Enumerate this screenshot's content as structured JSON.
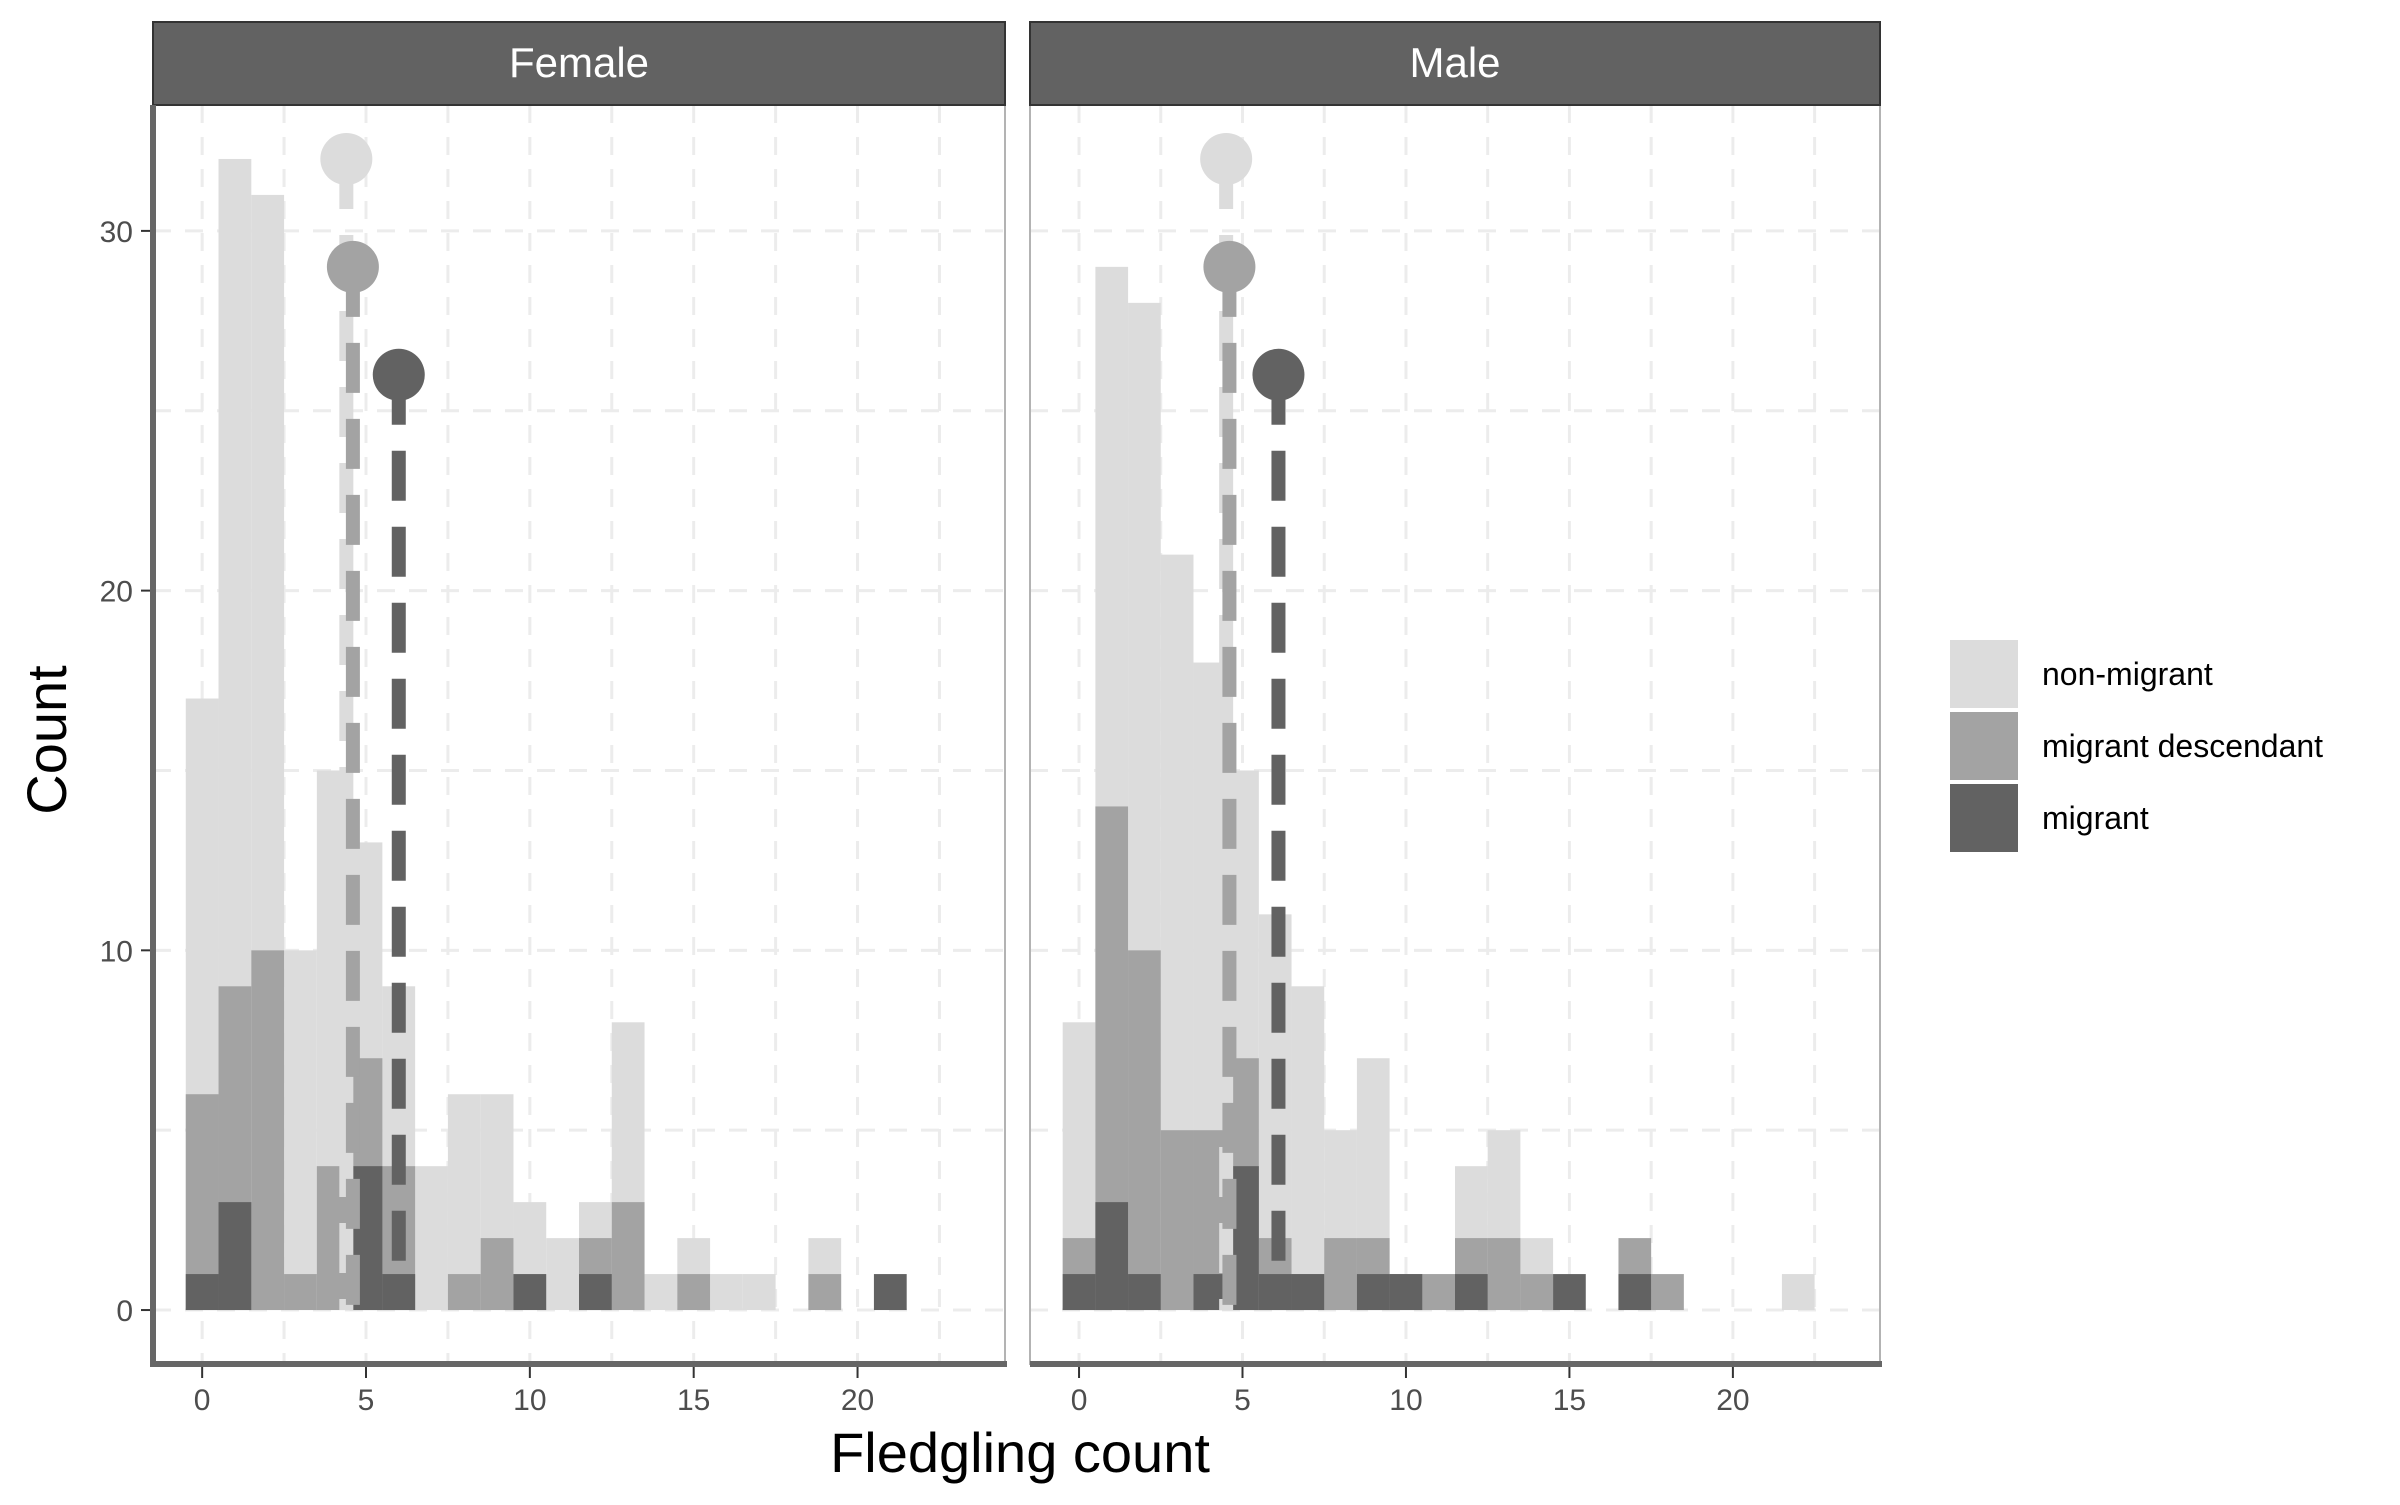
{
  "chart_data": {
    "type": "bar",
    "subtype": "faceted-overlaid-histogram",
    "xlabel": "Fledgling count",
    "ylabel": "Count",
    "xlim": [
      -1.5,
      24.5
    ],
    "ylim": [
      -1.5,
      33.5
    ],
    "x_ticks": [
      0,
      5,
      10,
      15,
      20
    ],
    "y_ticks": [
      0,
      10,
      20,
      30
    ],
    "grid": "dashed-major-and-minor",
    "legend_position": "right",
    "colors": {
      "non-migrant": "#dcdcdc",
      "migrant descendant": "#a3a3a3",
      "migrant": "#626262",
      "strip": "#626262",
      "grid": "#ececec",
      "panel_border": "#b3b3b3"
    },
    "legend": [
      {
        "key": "non-migrant",
        "label": "non-migrant"
      },
      {
        "key": "migrant descendant",
        "label": "migrant descendant"
      },
      {
        "key": "migrant",
        "label": "migrant"
      }
    ],
    "bin_width": 1,
    "panels": [
      {
        "strip": "Female",
        "series": [
          {
            "name": "non-migrant",
            "counts": [
              17,
              32,
              31,
              10,
              15,
              13,
              9,
              4,
              6,
              6,
              3,
              2,
              3,
              8,
              1,
              2,
              1,
              1,
              0,
              2,
              0,
              0,
              0
            ]
          },
          {
            "name": "migrant descendant",
            "counts": [
              6,
              9,
              10,
              1,
              4,
              7,
              4,
              0,
              1,
              2,
              0,
              0,
              2,
              3,
              0,
              1,
              0,
              0,
              0,
              1,
              0,
              0,
              0
            ]
          },
          {
            "name": "migrant",
            "counts": [
              1,
              3,
              0,
              0,
              0,
              4,
              1,
              0,
              0,
              0,
              1,
              0,
              1,
              0,
              0,
              0,
              0,
              0,
              0,
              0,
              0,
              1,
              0
            ]
          }
        ],
        "means": [
          {
            "name": "non-migrant",
            "x": 4.4,
            "y": 32
          },
          {
            "name": "migrant descendant",
            "x": 4.6,
            "y": 29
          },
          {
            "name": "migrant",
            "x": 6.0,
            "y": 26
          }
        ]
      },
      {
        "strip": "Male",
        "series": [
          {
            "name": "non-migrant",
            "counts": [
              8,
              29,
              28,
              21,
              18,
              15,
              11,
              9,
              5,
              7,
              1,
              1,
              4,
              5,
              2,
              0,
              0,
              0,
              0,
              0,
              0,
              0,
              1
            ]
          },
          {
            "name": "migrant descendant",
            "counts": [
              2,
              14,
              10,
              5,
              5,
              7,
              2,
              1,
              2,
              2,
              1,
              1,
              2,
              2,
              1,
              0,
              0,
              2,
              1,
              0,
              0,
              0,
              0
            ]
          },
          {
            "name": "migrant",
            "counts": [
              1,
              3,
              1,
              0,
              1,
              4,
              1,
              1,
              0,
              1,
              1,
              0,
              1,
              0,
              0,
              1,
              0,
              1,
              0,
              0,
              0,
              0,
              0
            ]
          }
        ],
        "means": [
          {
            "name": "non-migrant",
            "x": 4.5,
            "y": 32
          },
          {
            "name": "migrant descendant",
            "x": 4.6,
            "y": 29
          },
          {
            "name": "migrant",
            "x": 6.1,
            "y": 26
          }
        ]
      }
    ]
  }
}
